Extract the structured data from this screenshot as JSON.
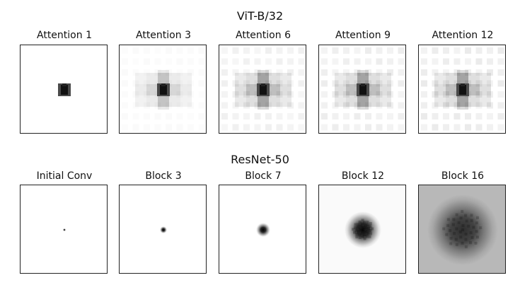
{
  "figure": {
    "rows": [
      {
        "title": "ViT-B/32",
        "panels": [
          {
            "label": "Attention 1",
            "blob": "vit",
            "spread": 0,
            "halo": 0,
            "bg": 0
          },
          {
            "label": "Attention 3",
            "blob": "vit",
            "spread": 1,
            "halo": 0.25,
            "bg": 0.02
          },
          {
            "label": "Attention 6",
            "blob": "vit",
            "spread": 1.5,
            "halo": 0.4,
            "bg": 0.06
          },
          {
            "label": "Attention 9",
            "blob": "vit",
            "spread": 1.5,
            "halo": 0.4,
            "bg": 0.07
          },
          {
            "label": "Attention 12",
            "blob": "vit",
            "spread": 1.5,
            "halo": 0.4,
            "bg": 0.08
          }
        ]
      },
      {
        "title": "ResNet-50",
        "panels": [
          {
            "label": "Initial Conv",
            "blob": "cnn",
            "radius": 2,
            "intensity": 1.0,
            "bg": 0
          },
          {
            "label": "Block 3",
            "blob": "cnn",
            "radius": 5,
            "intensity": 1.0,
            "bg": 0
          },
          {
            "label": "Block 7",
            "blob": "cnn",
            "radius": 10,
            "intensity": 1.0,
            "bg": 0
          },
          {
            "label": "Block 12",
            "blob": "cnn",
            "radius": 26,
            "intensity": 0.95,
            "bg": 0.02
          },
          {
            "label": "Block 16",
            "blob": "cnn",
            "radius": 50,
            "intensity": 0.75,
            "bg": 0.28
          }
        ]
      }
    ]
  }
}
